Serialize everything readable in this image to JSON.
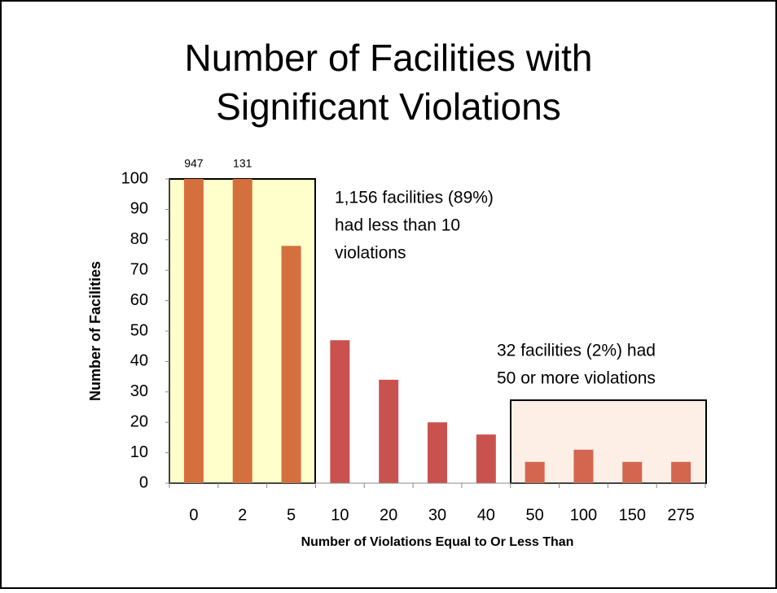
{
  "chart_data": {
    "type": "bar",
    "title": [
      "Number of Facilities with",
      "Significant Violations"
    ],
    "x_label": "Number of Violations Equal to Or Less Than",
    "y_label": "Number of Facilities",
    "categories": [
      "0",
      "2",
      "5",
      "10",
      "20",
      "30",
      "40",
      "50",
      "100",
      "150",
      "275"
    ],
    "values": [
      947,
      131,
      78,
      47,
      34,
      20,
      16,
      7,
      11,
      7,
      7
    ],
    "value_labels": [
      "947",
      "131",
      null,
      null,
      null,
      null,
      null,
      null,
      null,
      null,
      null
    ],
    "colors": [
      "#d46f3e",
      "#d46f3e",
      "#d46f3e",
      "#c9524f",
      "#c9524f",
      "#c9524f",
      "#c9524f",
      "#d46650",
      "#d46650",
      "#d46650",
      "#d46650"
    ],
    "ylim": [
      0,
      100
    ],
    "yticks": [
      0,
      10,
      20,
      30,
      40,
      50,
      60,
      70,
      80,
      90,
      100
    ],
    "grid": false,
    "annotations": [
      {
        "lines": [
          "1,156 facilities (89%)",
          "had less than 10",
          "violations"
        ]
      },
      {
        "lines": [
          "32 facilities (2%) had",
          "50 or more violations"
        ]
      }
    ]
  }
}
